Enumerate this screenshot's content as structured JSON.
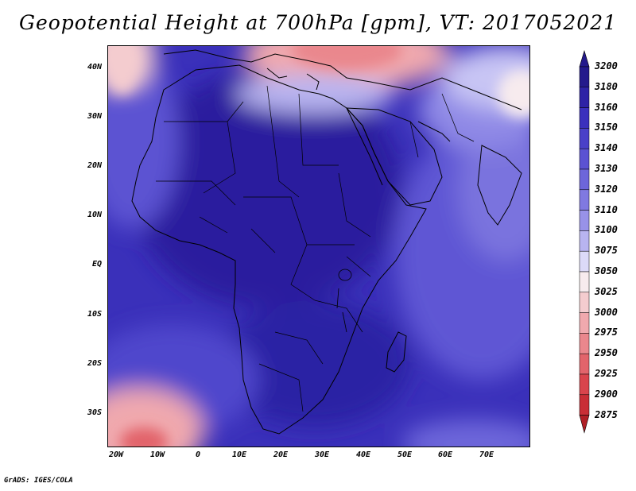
{
  "title": "Geopotential Height at 700hPa [gpm], VT: 2017052021",
  "credit": "GrADS: IGES/COLA",
  "map": {
    "lat_labels": [
      "40N",
      "30N",
      "20N",
      "10N",
      "EQ",
      "10S",
      "20S",
      "30S"
    ],
    "lon_labels": [
      "20W",
      "10W",
      "0",
      "10E",
      "20E",
      "30E",
      "40E",
      "50E",
      "60E",
      "70E"
    ]
  },
  "colorbar": {
    "levels": [
      "3200",
      "3180",
      "3160",
      "3150",
      "3140",
      "3130",
      "3120",
      "3110",
      "3100",
      "3075",
      "3050",
      "3025",
      "3000",
      "2975",
      "2950",
      "2925",
      "2900",
      "2875"
    ],
    "colors": [
      "#241a8c",
      "#2e23a6",
      "#3b30bd",
      "#4a40c8",
      "#5b52d2",
      "#6d66da",
      "#8079e0",
      "#9892e8",
      "#b8b4f0",
      "#dcdaf8",
      "#f7ebee",
      "#f4cccf",
      "#f0a9ae",
      "#ea878d",
      "#e2646b",
      "#d9444c",
      "#c92e36",
      "#b01f26"
    ]
  }
}
